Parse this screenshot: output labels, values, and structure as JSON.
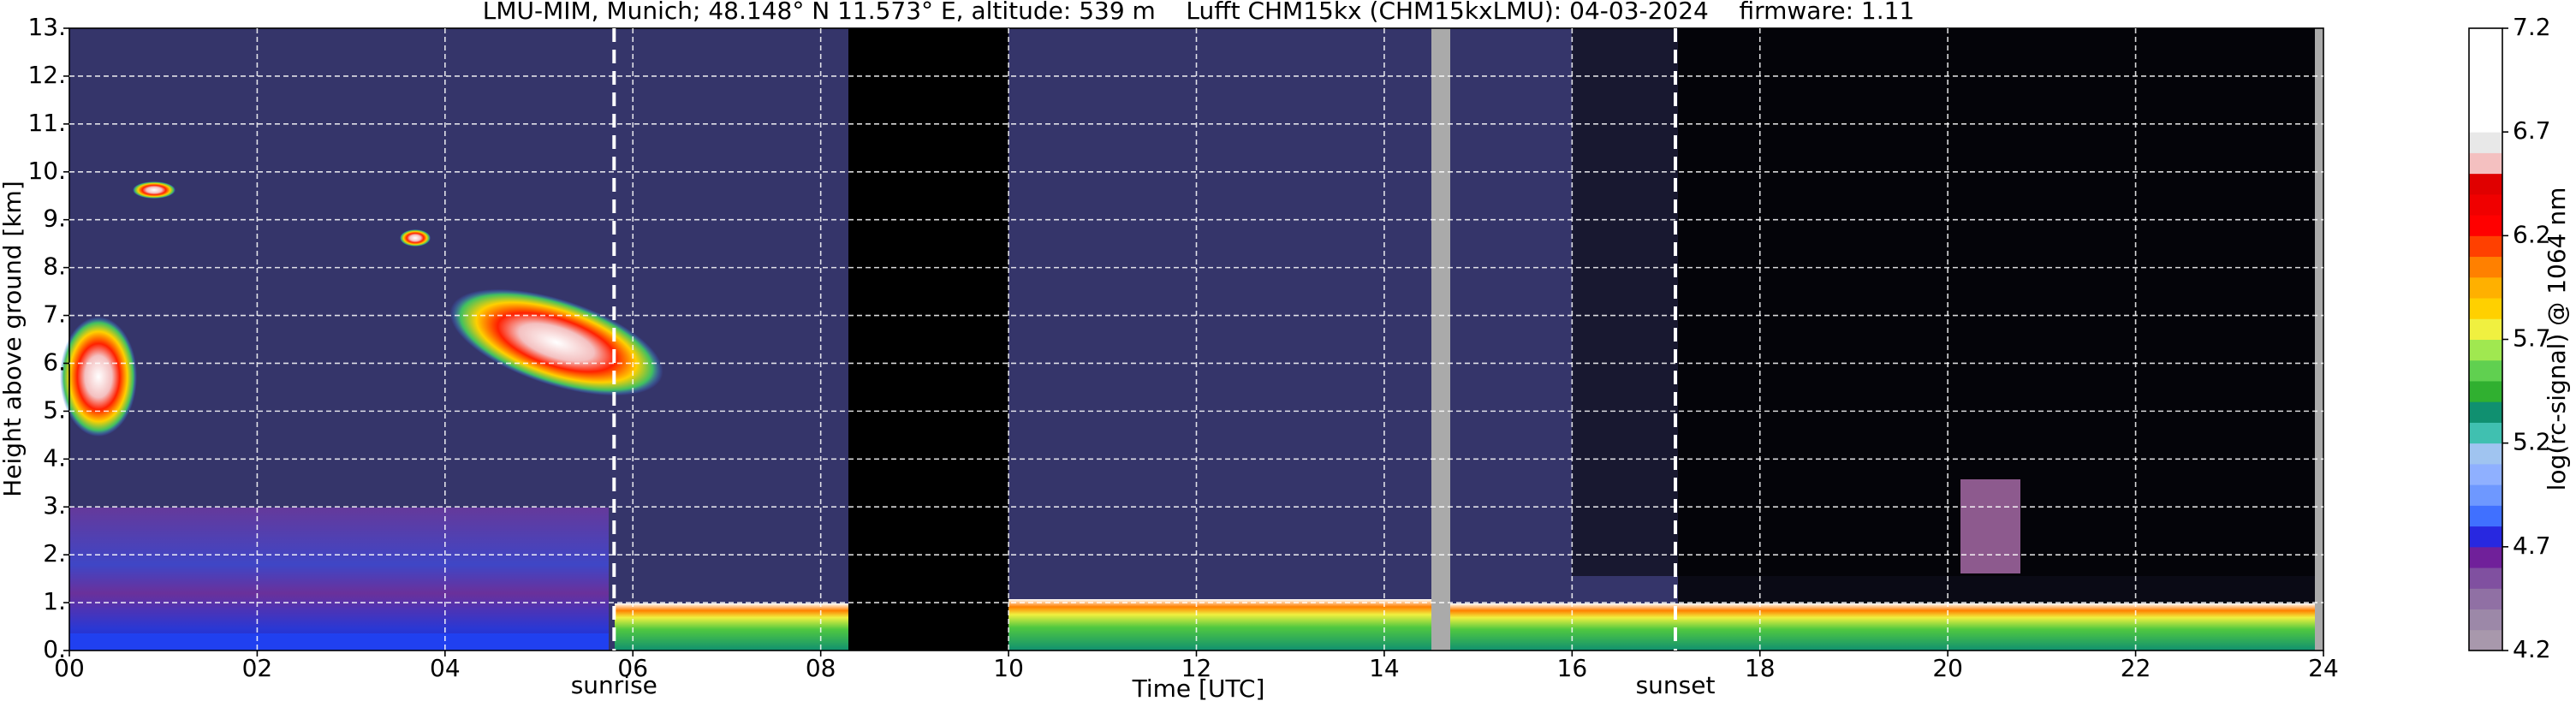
{
  "chart_data": {
    "type": "heatmap",
    "title": "LMU-MIM, Munich; 48.148° N 11.573° E, altitude: 539 m    Lufft CHM15kx (CHM15kxLMU): 04-03-2024    firmware: 1.11",
    "x_label": "Time [UTC]",
    "y_label": "Height above ground [km]",
    "colorbar_label": "log(rc-signal) @ 1064 nm",
    "xlim": [
      0,
      24
    ],
    "xticks": [
      {
        "value": 0,
        "label": "00"
      },
      {
        "value": 2,
        "label": "02"
      },
      {
        "value": 4,
        "label": "04"
      },
      {
        "value": 6,
        "label": "06"
      },
      {
        "value": 8,
        "label": "08"
      },
      {
        "value": 10,
        "label": "10"
      },
      {
        "value": 12,
        "label": "12"
      },
      {
        "value": 14,
        "label": "14"
      },
      {
        "value": 16,
        "label": "16"
      },
      {
        "value": 18,
        "label": "18"
      },
      {
        "value": 20,
        "label": "20"
      },
      {
        "value": 22,
        "label": "22"
      },
      {
        "value": 24,
        "label": "24"
      }
    ],
    "ylim": [
      0,
      13
    ],
    "yticks": [
      {
        "value": 0,
        "label": "0."
      },
      {
        "value": 1,
        "label": "1."
      },
      {
        "value": 2,
        "label": "2."
      },
      {
        "value": 3,
        "label": "3."
      },
      {
        "value": 4,
        "label": "4."
      },
      {
        "value": 5,
        "label": "5."
      },
      {
        "value": 6,
        "label": "6."
      },
      {
        "value": 7,
        "label": "7."
      },
      {
        "value": 8,
        "label": "8."
      },
      {
        "value": 9,
        "label": "9."
      },
      {
        "value": 10,
        "label": "10."
      },
      {
        "value": 11,
        "label": "11."
      },
      {
        "value": 12,
        "label": "12."
      },
      {
        "value": 13,
        "label": "13."
      }
    ],
    "grid": true,
    "annotations": [
      {
        "x": 5.8,
        "label": "sunrise"
      },
      {
        "x": 17.1,
        "label": "sunset"
      }
    ],
    "clim": [
      4.2,
      7.2
    ],
    "cticks": [
      4.2,
      4.7,
      5.2,
      5.7,
      6.2,
      6.7,
      7.2
    ],
    "colormap": [
      "#a898ac",
      "#9c88a8",
      "#9070a4",
      "#8050a0",
      "#70209a",
      "#2828e0",
      "#4070ff",
      "#6e98ff",
      "#8fb0ff",
      "#a0c4f0",
      "#40c0b0",
      "#109070",
      "#30b030",
      "#60d050",
      "#a0e850",
      "#f0f040",
      "#ffd000",
      "#ffb000",
      "#ff8000",
      "#ff4000",
      "#ff0000",
      "#f00000",
      "#e00000",
      "#f4c0c0",
      "#e8e8e8",
      "#ffffff",
      "#ffffff",
      "#ffffff",
      "#ffffff",
      "#ffffff"
    ]
  }
}
